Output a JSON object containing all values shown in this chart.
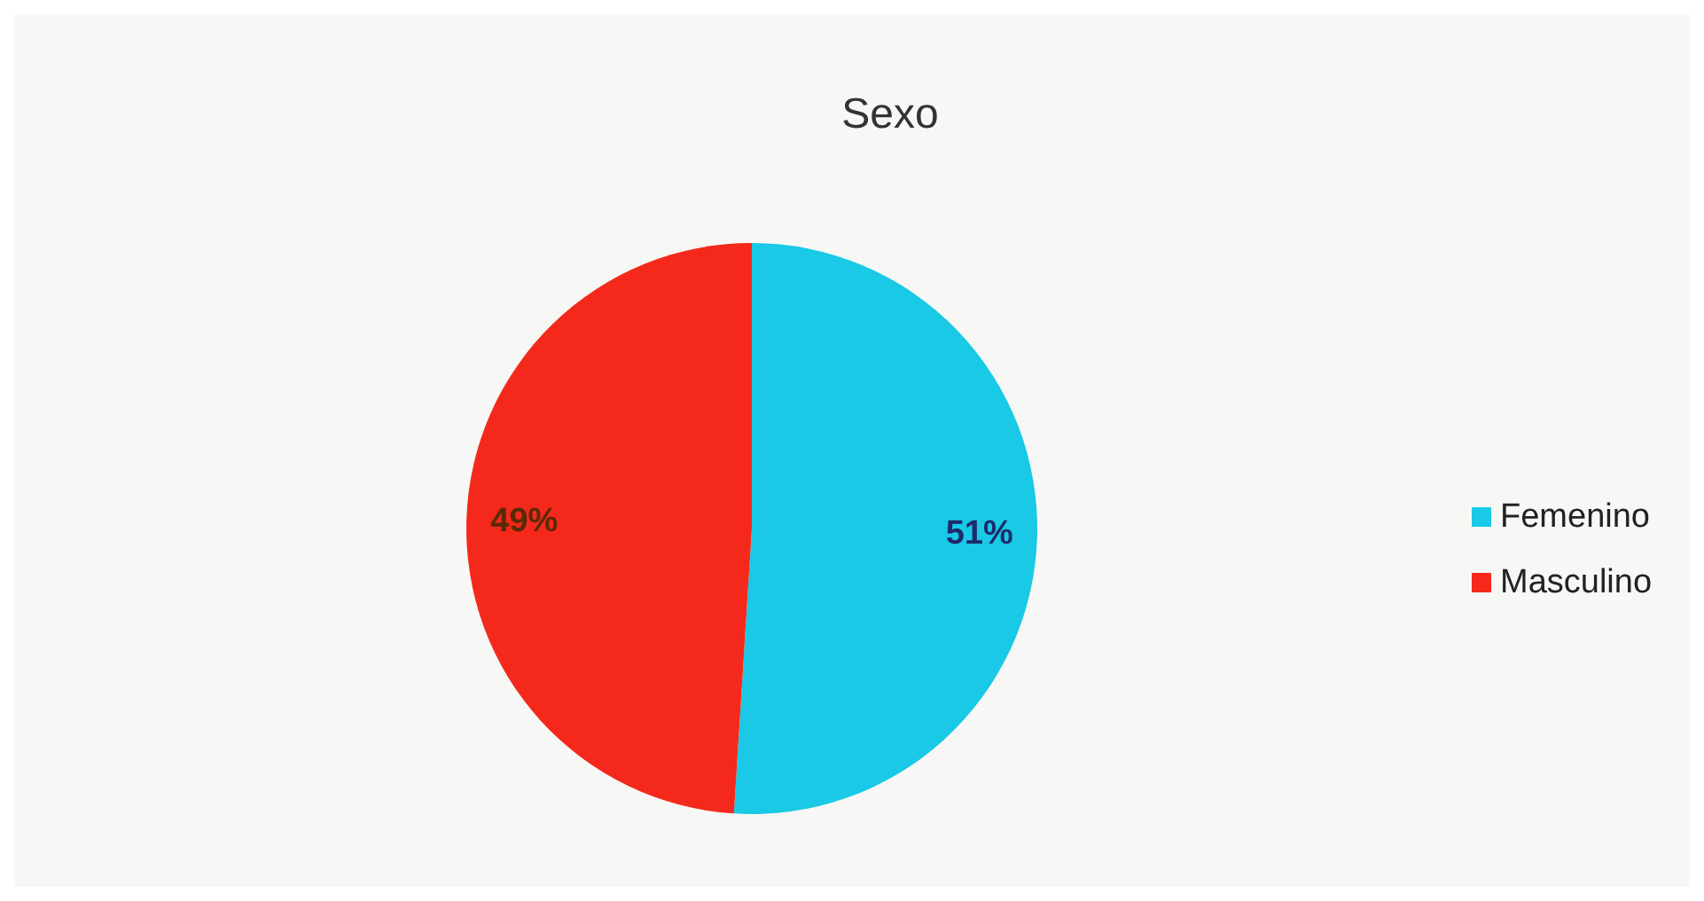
{
  "chart_data": {
    "type": "pie",
    "title": "Sexo",
    "categories": [
      "Femenino",
      "Masculino"
    ],
    "values": [
      51,
      49
    ],
    "colors": [
      "#19c9e6",
      "#f4291c"
    ],
    "value_labels": [
      "51%",
      "49%"
    ],
    "legend": "right"
  }
}
